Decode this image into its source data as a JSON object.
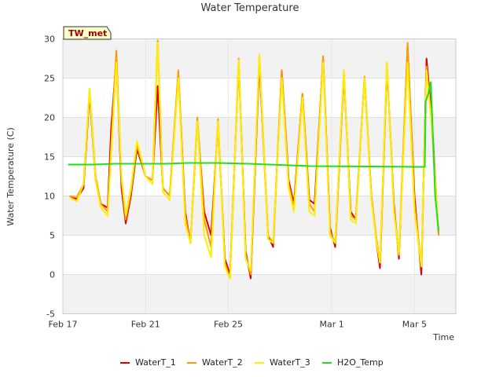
{
  "chart_data": {
    "type": "line",
    "title": "Water Temperature",
    "badge": "TW_met",
    "xlabel": "Time",
    "ylabel": "Water Temperature (C)",
    "xlim": [
      "2024-02-17",
      "2024-03-07"
    ],
    "ylim": [
      -5,
      30
    ],
    "x_ticks": [
      {
        "date": "2024-02-17",
        "label": "Feb 17"
      },
      {
        "date": "2024-02-21",
        "label": "Feb 21"
      },
      {
        "date": "2024-02-25",
        "label": "Feb 25"
      },
      {
        "date": "2024-03-01",
        "label": "Mar 1"
      },
      {
        "date": "2024-03-05",
        "label": "Mar 5"
      }
    ],
    "y_ticks": [
      -5,
      0,
      5,
      10,
      15,
      20,
      25,
      30
    ],
    "grid": true,
    "legend_position": "bottom",
    "series": [
      {
        "name": "WaterT_1",
        "color": "#dd0000",
        "points": [
          [
            "2024-02-17T08:00",
            10
          ],
          [
            "2024-02-17T16:00",
            9.6
          ],
          [
            "2024-02-18T00:00",
            11
          ],
          [
            "2024-02-18T07:00",
            23
          ],
          [
            "2024-02-18T14:00",
            12
          ],
          [
            "2024-02-18T20:00",
            9
          ],
          [
            "2024-02-19T04:00",
            8.5
          ],
          [
            "2024-02-19T08:00",
            18.5
          ],
          [
            "2024-02-19T14:00",
            27.5
          ],
          [
            "2024-02-19T20:00",
            11
          ],
          [
            "2024-02-20T01:00",
            6.5
          ],
          [
            "2024-02-20T07:00",
            10
          ],
          [
            "2024-02-20T14:00",
            16
          ],
          [
            "2024-02-21T00:00",
            12.5
          ],
          [
            "2024-02-21T08:00",
            12
          ],
          [
            "2024-02-21T14:00",
            24
          ],
          [
            "2024-02-21T20:00",
            11
          ],
          [
            "2024-02-22T04:00",
            10
          ],
          [
            "2024-02-22T14:00",
            25.5
          ],
          [
            "2024-02-22T22:00",
            8
          ],
          [
            "2024-02-23T04:00",
            4
          ],
          [
            "2024-02-23T12:00",
            19.5
          ],
          [
            "2024-02-23T20:00",
            8
          ],
          [
            "2024-02-24T04:00",
            5
          ],
          [
            "2024-02-24T12:00",
            19
          ],
          [
            "2024-02-24T20:00",
            2
          ],
          [
            "2024-02-25T02:00",
            0
          ],
          [
            "2024-02-25T12:00",
            27
          ],
          [
            "2024-02-25T20:00",
            3
          ],
          [
            "2024-02-26T02:00",
            -0.5
          ],
          [
            "2024-02-26T12:00",
            27
          ],
          [
            "2024-02-26T22:00",
            5
          ],
          [
            "2024-02-27T04:00",
            3.5
          ],
          [
            "2024-02-27T14:00",
            26
          ],
          [
            "2024-02-27T22:00",
            12
          ],
          [
            "2024-02-28T04:00",
            9
          ],
          [
            "2024-02-28T14:00",
            23
          ],
          [
            "2024-02-28T22:00",
            9.5
          ],
          [
            "2024-02-29T04:00",
            9
          ],
          [
            "2024-02-29T14:00",
            27.5
          ],
          [
            "2024-02-29T22:00",
            6
          ],
          [
            "2024-03-01T04:00",
            3.5
          ],
          [
            "2024-03-01T14:00",
            25.5
          ],
          [
            "2024-03-01T22:00",
            8
          ],
          [
            "2024-03-02T04:00",
            7
          ],
          [
            "2024-03-02T14:00",
            25
          ],
          [
            "2024-03-02T22:00",
            10
          ],
          [
            "2024-03-03T04:00",
            4
          ],
          [
            "2024-03-03T08:00",
            0.8
          ],
          [
            "2024-03-03T16:00",
            26.5
          ],
          [
            "2024-03-04T00:00",
            9
          ],
          [
            "2024-03-04T06:00",
            2
          ],
          [
            "2024-03-04T16:00",
            29
          ],
          [
            "2024-03-05T00:00",
            10
          ],
          [
            "2024-03-05T08:00",
            0
          ],
          [
            "2024-03-05T14:00",
            27.5
          ],
          [
            "2024-03-05T20:00",
            20
          ],
          [
            "2024-03-06T04:00",
            5
          ]
        ]
      },
      {
        "name": "WaterT_2",
        "color": "#ff9900",
        "points": [
          [
            "2024-02-17T08:00",
            10
          ],
          [
            "2024-02-17T16:00",
            9.8
          ],
          [
            "2024-02-18T00:00",
            11.5
          ],
          [
            "2024-02-18T07:00",
            23.5
          ],
          [
            "2024-02-18T14:00",
            12.5
          ],
          [
            "2024-02-18T20:00",
            9
          ],
          [
            "2024-02-19T04:00",
            8
          ],
          [
            "2024-02-19T14:00",
            28.5
          ],
          [
            "2024-02-19T20:00",
            12
          ],
          [
            "2024-02-20T01:00",
            7
          ],
          [
            "2024-02-20T07:00",
            10.5
          ],
          [
            "2024-02-20T14:00",
            16.5
          ],
          [
            "2024-02-21T00:00",
            12.5
          ],
          [
            "2024-02-21T08:00",
            12
          ],
          [
            "2024-02-21T14:00",
            29.8
          ],
          [
            "2024-02-21T20:00",
            11
          ],
          [
            "2024-02-22T04:00",
            10
          ],
          [
            "2024-02-22T14:00",
            26
          ],
          [
            "2024-02-22T22:00",
            7.5
          ],
          [
            "2024-02-23T04:00",
            4
          ],
          [
            "2024-02-23T12:00",
            20
          ],
          [
            "2024-02-23T20:00",
            7
          ],
          [
            "2024-02-24T04:00",
            3.5
          ],
          [
            "2024-02-24T12:00",
            19.8
          ],
          [
            "2024-02-24T20:00",
            1.5
          ],
          [
            "2024-02-25T02:00",
            -0.5
          ],
          [
            "2024-02-25T12:00",
            27.5
          ],
          [
            "2024-02-25T20:00",
            2.5
          ],
          [
            "2024-02-26T02:00",
            0
          ],
          [
            "2024-02-26T12:00",
            28
          ],
          [
            "2024-02-26T22:00",
            5
          ],
          [
            "2024-02-27T04:00",
            4
          ],
          [
            "2024-02-27T14:00",
            26
          ],
          [
            "2024-02-27T22:00",
            11.5
          ],
          [
            "2024-02-28T04:00",
            8.5
          ],
          [
            "2024-02-28T14:00",
            23
          ],
          [
            "2024-02-28T22:00",
            9
          ],
          [
            "2024-02-29T04:00",
            8
          ],
          [
            "2024-02-29T14:00",
            27.8
          ],
          [
            "2024-02-29T22:00",
            5.5
          ],
          [
            "2024-03-01T04:00",
            4
          ],
          [
            "2024-03-01T14:00",
            26
          ],
          [
            "2024-03-01T22:00",
            7.5
          ],
          [
            "2024-03-02T04:00",
            7
          ],
          [
            "2024-03-02T14:00",
            25.2
          ],
          [
            "2024-03-02T22:00",
            10
          ],
          [
            "2024-03-03T04:00",
            4.5
          ],
          [
            "2024-03-03T08:00",
            1.5
          ],
          [
            "2024-03-03T16:00",
            27
          ],
          [
            "2024-03-04T00:00",
            8.5
          ],
          [
            "2024-03-04T06:00",
            2.5
          ],
          [
            "2024-03-04T16:00",
            29.5
          ],
          [
            "2024-03-05T00:00",
            9
          ],
          [
            "2024-03-05T08:00",
            1
          ],
          [
            "2024-03-05T14:00",
            26.5
          ],
          [
            "2024-03-05T20:00",
            19
          ],
          [
            "2024-03-06T04:00",
            5
          ]
        ]
      },
      {
        "name": "WaterT_3",
        "color": "#ffee00",
        "points": [
          [
            "2024-02-17T08:00",
            9.8
          ],
          [
            "2024-02-17T16:00",
            9.3
          ],
          [
            "2024-02-18T00:00",
            11.5
          ],
          [
            "2024-02-18T07:00",
            23.7
          ],
          [
            "2024-02-18T14:00",
            12
          ],
          [
            "2024-02-18T20:00",
            8.5
          ],
          [
            "2024-02-19T04:00",
            7.5
          ],
          [
            "2024-02-19T14:00",
            27
          ],
          [
            "2024-02-19T20:00",
            12.5
          ],
          [
            "2024-02-20T01:00",
            7.5
          ],
          [
            "2024-02-20T07:00",
            11
          ],
          [
            "2024-02-20T14:00",
            17
          ],
          [
            "2024-02-21T00:00",
            12.5
          ],
          [
            "2024-02-21T08:00",
            11.5
          ],
          [
            "2024-02-21T14:00",
            29.5
          ],
          [
            "2024-02-21T20:00",
            10.5
          ],
          [
            "2024-02-22T04:00",
            9.5
          ],
          [
            "2024-02-22T14:00",
            25
          ],
          [
            "2024-02-22T22:00",
            6.5
          ],
          [
            "2024-02-23T04:00",
            4
          ],
          [
            "2024-02-23T12:00",
            19.5
          ],
          [
            "2024-02-23T20:00",
            5
          ],
          [
            "2024-02-24T04:00",
            2.2
          ],
          [
            "2024-02-24T12:00",
            19.5
          ],
          [
            "2024-02-24T20:00",
            1
          ],
          [
            "2024-02-25T02:00",
            -0.5
          ],
          [
            "2024-02-25T12:00",
            27.3
          ],
          [
            "2024-02-25T20:00",
            2
          ],
          [
            "2024-02-26T02:00",
            0.5
          ],
          [
            "2024-02-26T12:00",
            28
          ],
          [
            "2024-02-26T22:00",
            4.5
          ],
          [
            "2024-02-27T04:00",
            4
          ],
          [
            "2024-02-27T14:00",
            25
          ],
          [
            "2024-02-27T22:00",
            11
          ],
          [
            "2024-02-28T04:00",
            8
          ],
          [
            "2024-02-28T14:00",
            22.5
          ],
          [
            "2024-02-28T22:00",
            8
          ],
          [
            "2024-02-29T04:00",
            7.5
          ],
          [
            "2024-02-29T14:00",
            27
          ],
          [
            "2024-02-29T22:00",
            5
          ],
          [
            "2024-03-01T04:00",
            4
          ],
          [
            "2024-03-01T14:00",
            26
          ],
          [
            "2024-03-01T22:00",
            7
          ],
          [
            "2024-03-02T04:00",
            6.5
          ],
          [
            "2024-03-02T14:00",
            25
          ],
          [
            "2024-03-02T22:00",
            9.5
          ],
          [
            "2024-03-03T04:00",
            4
          ],
          [
            "2024-03-03T08:00",
            1.5
          ],
          [
            "2024-03-03T16:00",
            27
          ],
          [
            "2024-03-04T00:00",
            8
          ],
          [
            "2024-03-04T06:00",
            2.5
          ],
          [
            "2024-03-04T16:00",
            27
          ],
          [
            "2024-03-05T00:00",
            8
          ],
          [
            "2024-03-05T08:00",
            1
          ],
          [
            "2024-03-05T14:00",
            26
          ],
          [
            "2024-03-05T20:00",
            19
          ],
          [
            "2024-03-06T04:00",
            5.5
          ]
        ]
      },
      {
        "name": "H2O_Temp",
        "color": "#22dd22",
        "points": [
          [
            "2024-02-17T06:00",
            14
          ],
          [
            "2024-02-18T12:00",
            14
          ],
          [
            "2024-02-19T12:00",
            14.1
          ],
          [
            "2024-02-22T00:00",
            14.1
          ],
          [
            "2024-02-23T00:00",
            14.2
          ],
          [
            "2024-02-24T12:00",
            14.2
          ],
          [
            "2024-02-26T00:00",
            14.1
          ],
          [
            "2024-02-27T00:00",
            14
          ],
          [
            "2024-02-28T00:00",
            13.9
          ],
          [
            "2024-02-29T00:00",
            13.8
          ],
          [
            "2024-03-05T08:00",
            13.7
          ],
          [
            "2024-03-05T12:00",
            13.7
          ],
          [
            "2024-03-05T13:00",
            22
          ],
          [
            "2024-03-05T16:00",
            23
          ],
          [
            "2024-03-05T19:00",
            24.5
          ],
          [
            "2024-03-06T00:00",
            10
          ],
          [
            "2024-03-06T04:00",
            5.5
          ]
        ]
      }
    ]
  }
}
